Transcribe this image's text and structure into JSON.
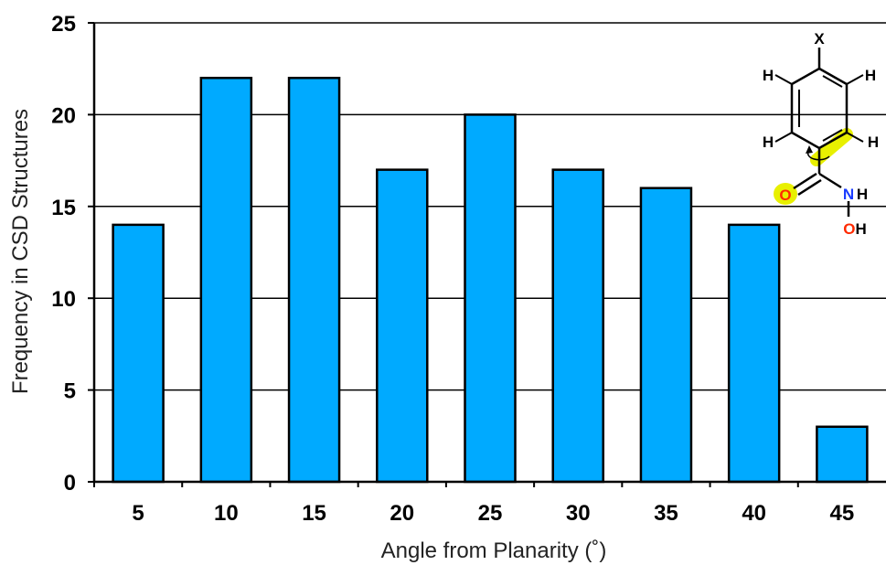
{
  "chart_data": {
    "type": "bar",
    "categories": [
      "5",
      "10",
      "15",
      "20",
      "25",
      "30",
      "35",
      "40",
      "45"
    ],
    "values": [
      14,
      22,
      22,
      17,
      20,
      17,
      16,
      14,
      3
    ],
    "xlabel": "Angle from Planarity (˚)",
    "ylabel": "Frequency in CSD Structures",
    "ylim": [
      0,
      25
    ],
    "yticks": [
      "0",
      "5",
      "10",
      "15",
      "20",
      "25"
    ],
    "grid": true,
    "bar_color": "#00aaff",
    "bar_edge_color": "#000000"
  },
  "molecule": {
    "substituent": "X",
    "ring_h": [
      "H",
      "H",
      "H",
      "H"
    ],
    "carbonyl_o": "O",
    "amide_n": "N",
    "amide_h": "H",
    "hydroxyl": "OH",
    "highlight_color": "#e8f000",
    "oxygen_color": "#ff2a00",
    "nitrogen_color": "#1a3cff"
  }
}
